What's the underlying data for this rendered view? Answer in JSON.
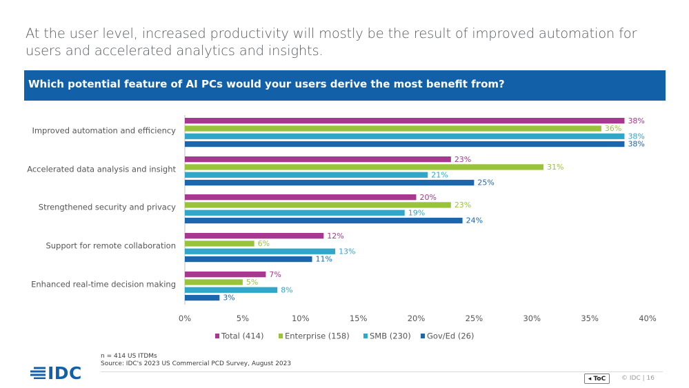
{
  "headline": "At the user level, increased productivity will mostly be the result of improved automation for users and accelerated analytics and insights.",
  "banner_title": "Which potential feature of AI PCs would your users derive the most benefit from?",
  "chart_data": {
    "type": "bar",
    "orientation": "horizontal",
    "categories": [
      "Improved automation and efficiency",
      "Accelerated data analysis and insight",
      "Strengthened security and privacy",
      "Support for remote collaboration",
      "Enhanced real-time decision making"
    ],
    "series": [
      {
        "name": "Total (414)",
        "color": "#a8378f",
        "values": [
          38,
          23,
          20,
          12,
          7
        ]
      },
      {
        "name": "Enterprise (158)",
        "color": "#98c33a",
        "values": [
          36,
          31,
          23,
          6,
          5
        ]
      },
      {
        "name": "SMB (230)",
        "color": "#30a6c9",
        "values": [
          38,
          21,
          19,
          13,
          8
        ]
      },
      {
        "name": "Gov/Ed (26)",
        "color": "#1b66ad",
        "values": [
          38,
          25,
          24,
          11,
          3
        ]
      }
    ],
    "value_suffix": "%",
    "xlim": [
      0,
      40
    ],
    "xticks": [
      "0%",
      "5%",
      "10%",
      "15%",
      "20%",
      "25%",
      "30%",
      "35%",
      "40%"
    ],
    "grid": false,
    "legend_position": "bottom"
  },
  "source": {
    "sample": "n = 414 US ITDMs",
    "citation": "Source: IDC's 2023 US Commercial PCD Survey, August 2023"
  },
  "footer": {
    "logo_text": "IDC",
    "toc_label": "ToC",
    "copyright": "© IDC |",
    "page_number": "16"
  },
  "colors": {
    "brand_blue": "#1261a8"
  }
}
